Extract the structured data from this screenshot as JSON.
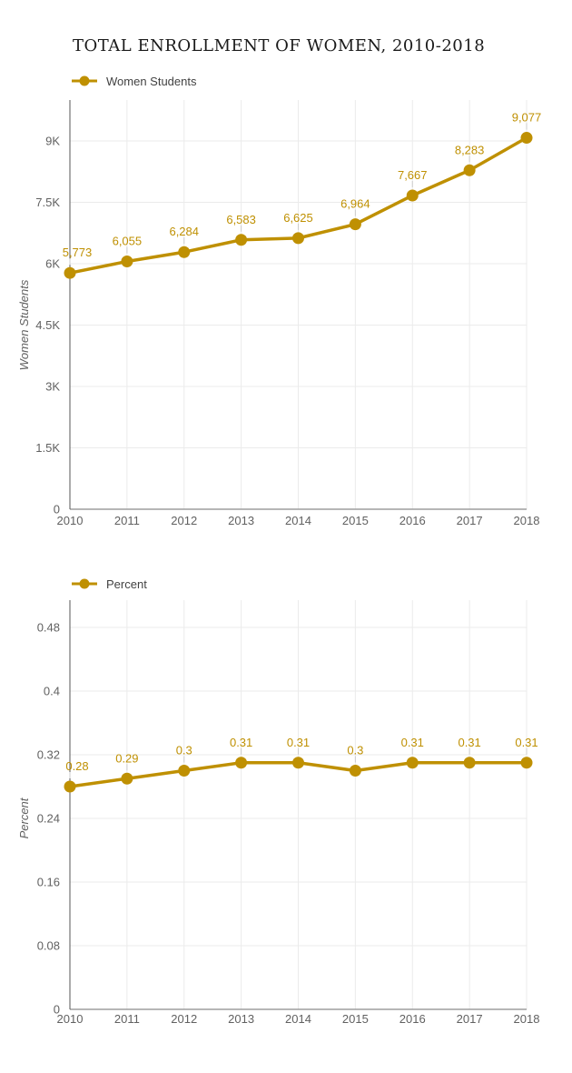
{
  "page": {
    "title": "TOTAL ENROLLMENT OF WOMEN, 2010-2018"
  },
  "colors": {
    "series_gold": "#BF9002",
    "grid": "#EBEBEB",
    "baseline": "#9E9E9E",
    "axis_line": "#555555",
    "tick_label": "#616161",
    "axis_title": "#616161",
    "legend_label": "#424242",
    "title_text": "#1A1A1A",
    "connector": "#CCCCCC",
    "background": "#FFFFFF"
  },
  "chart_data": [
    {
      "type": "line",
      "name": "women-students-enrollment",
      "title": "TOTAL ENROLLMENT OF WOMEN, 2010-2018",
      "legend": "Women Students",
      "legend_position": "top",
      "xlabel": "",
      "ylabel": "Women Students",
      "grid": true,
      "categories": [
        "2010",
        "2011",
        "2012",
        "2013",
        "2014",
        "2015",
        "2016",
        "2017",
        "2018"
      ],
      "values": [
        5773,
        6055,
        6284,
        6583,
        6625,
        6964,
        7667,
        8283,
        9077
      ],
      "point_labels": [
        "5,773",
        "6,055",
        "6,284",
        "6,583",
        "6,625",
        "6,964",
        "7,667",
        "8,283",
        "9,077"
      ],
      "ytick_values": [
        0,
        1500,
        3000,
        4500,
        6000,
        7500,
        9000
      ],
      "ytick_labels": [
        "0",
        "1.5K",
        "3K",
        "4.5K",
        "6K",
        "7.5K",
        "9K"
      ],
      "ylim": [
        0,
        9000
      ]
    },
    {
      "type": "line",
      "name": "percent-women",
      "title": "",
      "legend": "Percent",
      "legend_position": "top",
      "xlabel": "",
      "ylabel": "Percent",
      "grid": true,
      "categories": [
        "2010",
        "2011",
        "2012",
        "2013",
        "2014",
        "2015",
        "2016",
        "2017",
        "2018"
      ],
      "values": [
        0.28,
        0.29,
        0.3,
        0.31,
        0.31,
        0.3,
        0.31,
        0.31,
        0.31
      ],
      "point_labels": [
        "0.28",
        "0.29",
        "0.3",
        "0.31",
        "0.31",
        "0.3",
        "0.31",
        "0.31",
        "0.31"
      ],
      "ytick_values": [
        0,
        0.08,
        0.16,
        0.24,
        0.32,
        0.4,
        0.48
      ],
      "ytick_labels": [
        "0",
        "0.08",
        "0.16",
        "0.24",
        "0.32",
        "0.4",
        "0.48"
      ],
      "ylim": [
        0,
        0.48
      ]
    }
  ]
}
